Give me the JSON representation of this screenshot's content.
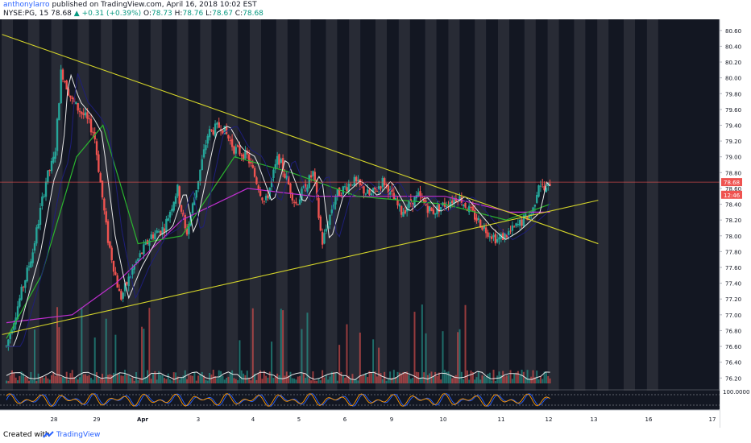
{
  "header": {
    "author": "anthonylarro",
    "published_text": "published on TradingView.com, April 16, 2018 10:02 EST",
    "symbol": "NYSE:PG, 15",
    "last": "78.68",
    "change": "+0.31 (+0.39%)",
    "open_label": "O:",
    "open": "78.73",
    "high_label": "H:",
    "high": "78.76",
    "low_label": "L:",
    "low": "78.67",
    "close_label": "C:",
    "close": "78.68"
  },
  "footer": {
    "created_with": "Created with",
    "brand": "TradingView"
  },
  "colors": {
    "background": "#131722",
    "session_band": "#3a3d45",
    "up": "#26a69a",
    "down": "#ef5350",
    "trendline": "#d4d42a",
    "ma_magenta": "#c02fd0",
    "ma_green": "#2bb52f",
    "ma_white": "#e8e8e8",
    "ma_navy": "#1e1e78",
    "price_tag": "#ef5350"
  },
  "chart_data": {
    "type": "candlestick",
    "symbol": "NYSE:PG",
    "interval": "15",
    "x_tick_labels": [
      "28",
      "29",
      "Apr",
      "3",
      "4",
      "5",
      "6",
      "9",
      "10",
      "11",
      "12",
      "13",
      "16",
      "17"
    ],
    "y_tick_labels": [
      "80.60",
      "80.40",
      "80.20",
      "80.00",
      "79.80",
      "79.60",
      "79.40",
      "79.20",
      "79.00",
      "78.80",
      "78.60",
      "78.40",
      "78.20",
      "78.00",
      "77.80",
      "77.60",
      "77.40",
      "77.20",
      "77.00",
      "76.80",
      "76.60",
      "76.40",
      "76.20"
    ],
    "ylim": [
      76.05,
      80.7
    ],
    "price_tags": [
      {
        "value": 78.68,
        "label": "78.68"
      },
      {
        "value": 78.52,
        "label": "12:46"
      }
    ],
    "price_path": [
      {
        "x": 0.0,
        "y": 76.6
      },
      {
        "x": 0.3,
        "y": 77.2
      },
      {
        "x": 0.6,
        "y": 77.8
      },
      {
        "x": 0.9,
        "y": 78.7
      },
      {
        "x": 1.1,
        "y": 79.0
      },
      {
        "x": 1.25,
        "y": 80.1
      },
      {
        "x": 1.5,
        "y": 79.7
      },
      {
        "x": 1.8,
        "y": 79.5
      },
      {
        "x": 2.0,
        "y": 79.3
      },
      {
        "x": 2.3,
        "y": 78.0
      },
      {
        "x": 2.6,
        "y": 77.2
      },
      {
        "x": 2.9,
        "y": 77.6
      },
      {
        "x": 3.3,
        "y": 78.0
      },
      {
        "x": 3.6,
        "y": 78.1
      },
      {
        "x": 3.9,
        "y": 78.6
      },
      {
        "x": 4.1,
        "y": 78.0
      },
      {
        "x": 4.6,
        "y": 79.3
      },
      {
        "x": 4.9,
        "y": 79.4
      },
      {
        "x": 5.2,
        "y": 79.1
      },
      {
        "x": 5.5,
        "y": 79.0
      },
      {
        "x": 5.9,
        "y": 78.4
      },
      {
        "x": 6.2,
        "y": 79.0
      },
      {
        "x": 6.6,
        "y": 78.4
      },
      {
        "x": 7.0,
        "y": 78.8
      },
      {
        "x": 7.2,
        "y": 77.9
      },
      {
        "x": 7.5,
        "y": 78.5
      },
      {
        "x": 7.9,
        "y": 78.7
      },
      {
        "x": 8.3,
        "y": 78.5
      },
      {
        "x": 8.6,
        "y": 78.7
      },
      {
        "x": 9.0,
        "y": 78.3
      },
      {
        "x": 9.4,
        "y": 78.5
      },
      {
        "x": 9.7,
        "y": 78.3
      },
      {
        "x": 10.0,
        "y": 78.4
      },
      {
        "x": 10.3,
        "y": 78.5
      },
      {
        "x": 10.6,
        "y": 78.3
      },
      {
        "x": 10.9,
        "y": 78.1
      },
      {
        "x": 11.2,
        "y": 77.95
      },
      {
        "x": 11.5,
        "y": 78.05
      },
      {
        "x": 11.8,
        "y": 78.2
      },
      {
        "x": 12.0,
        "y": 78.3
      },
      {
        "x": 12.15,
        "y": 78.7
      },
      {
        "x": 12.3,
        "y": 78.55
      },
      {
        "x": 12.4,
        "y": 78.68
      }
    ],
    "series": [
      {
        "name": "",
        "color": "#c02fd0",
        "points": [
          {
            "x": 0,
            "y": 76.9
          },
          {
            "x": 1.5,
            "y": 77.0
          },
          {
            "x": 2.5,
            "y": 77.4
          },
          {
            "x": 4.0,
            "y": 78.2
          },
          {
            "x": 5.5,
            "y": 78.6
          },
          {
            "x": 7.0,
            "y": 78.5
          },
          {
            "x": 8.5,
            "y": 78.5
          },
          {
            "x": 10.0,
            "y": 78.5
          },
          {
            "x": 11.5,
            "y": 78.3
          },
          {
            "x": 12.4,
            "y": 78.3
          }
        ]
      },
      {
        "name": "",
        "color": "#2bb52f",
        "points": [
          {
            "x": 0,
            "y": 76.7
          },
          {
            "x": 0.8,
            "y": 77.5
          },
          {
            "x": 1.6,
            "y": 79.0
          },
          {
            "x": 2.2,
            "y": 79.4
          },
          {
            "x": 3.0,
            "y": 77.9
          },
          {
            "x": 4.0,
            "y": 78.0
          },
          {
            "x": 5.2,
            "y": 79.0
          },
          {
            "x": 6.5,
            "y": 78.8
          },
          {
            "x": 8.0,
            "y": 78.5
          },
          {
            "x": 10.0,
            "y": 78.4
          },
          {
            "x": 11.4,
            "y": 78.2
          },
          {
            "x": 12.4,
            "y": 78.4
          }
        ]
      }
    ],
    "trendlines": [
      {
        "from": {
          "x": -0.1,
          "y": 80.55
        },
        "to": {
          "x": 13.5,
          "y": 77.9
        }
      },
      {
        "from": {
          "x": -0.1,
          "y": 76.75
        },
        "to": {
          "x": 13.5,
          "y": 78.45
        }
      }
    ],
    "lower_pane": {
      "label": "100.0000"
    }
  }
}
